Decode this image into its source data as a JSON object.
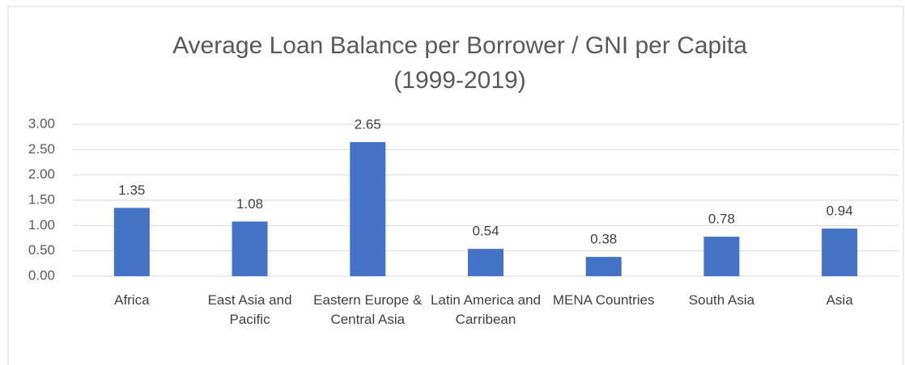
{
  "chart_data": {
    "type": "bar",
    "title": [
      "Average Loan Balance per Borrower / GNI per Capita",
      "(1999-2019)"
    ],
    "categories": [
      "Africa",
      "East Asia and Pacific",
      "Eastern Europe & Central Asia",
      "Latin America and Carribean",
      "MENA Countries",
      "South Asia",
      "Asia"
    ],
    "values": [
      1.35,
      1.08,
      2.65,
      0.54,
      0.38,
      0.78,
      0.94
    ],
    "color": "#4472c4",
    "ylim": [
      0,
      3
    ],
    "yticks": [
      {
        "value": 0,
        "label": "0.00"
      },
      {
        "value": 0.5,
        "label": "0.50"
      },
      {
        "value": 1,
        "label": "1.00"
      },
      {
        "value": 1.5,
        "label": "1.50"
      },
      {
        "value": 2,
        "label": "2.00"
      },
      {
        "value": 2.5,
        "label": "2.50"
      },
      {
        "value": 3,
        "label": "3.00"
      }
    ],
    "grid": true
  }
}
